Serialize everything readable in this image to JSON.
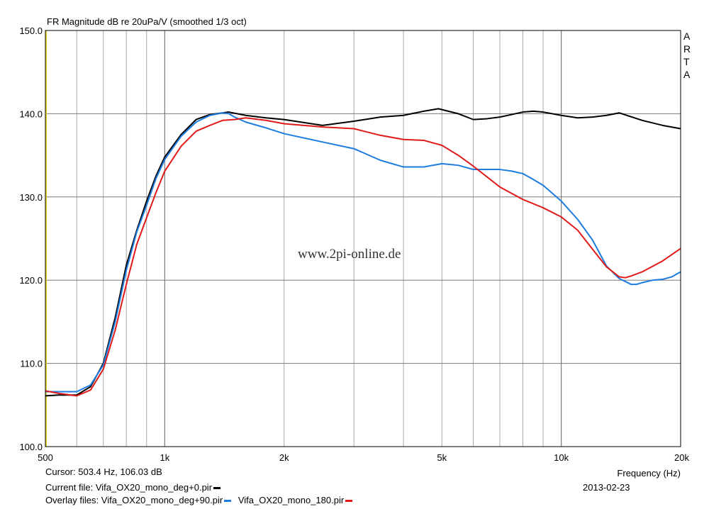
{
  "chart_data": {
    "type": "line",
    "title": "FR Magnitude dB re 20uPa/V (smoothed 1/3 oct)",
    "watermark": "www.2pi-online.de",
    "arta_label": "A\nR\nT\nA",
    "xlabel": "Frequency (Hz)",
    "x_scale": "log",
    "xlim": [
      500,
      20000
    ],
    "ylim": [
      100,
      150
    ],
    "x_ticks": [
      {
        "value": 500,
        "label": "500"
      },
      {
        "value": 1000,
        "label": "1k"
      },
      {
        "value": 2000,
        "label": "2k"
      },
      {
        "value": 5000,
        "label": "5k"
      },
      {
        "value": 10000,
        "label": "10k"
      },
      {
        "value": 20000,
        "label": "20k"
      }
    ],
    "y_ticks": [
      {
        "value": 100,
        "label": "100.0"
      },
      {
        "value": 110,
        "label": "110.0"
      },
      {
        "value": 120,
        "label": "120.0"
      },
      {
        "value": 130,
        "label": "130.0"
      },
      {
        "value": 140,
        "label": "140.0"
      },
      {
        "value": 150,
        "label": "150.0"
      }
    ],
    "grid": true,
    "series": [
      {
        "name": "Vifa_OX20_mono_deg+0.pir",
        "color": "#000000",
        "x": [
          500,
          540,
          600,
          650,
          700,
          750,
          800,
          850,
          900,
          950,
          1000,
          1100,
          1200,
          1300,
          1400,
          1450,
          1600,
          1800,
          2000,
          2500,
          3000,
          3500,
          4000,
          4500,
          4900,
          5500,
          6000,
          6500,
          7000,
          7500,
          8000,
          8500,
          9000,
          10000,
          11000,
          12000,
          13000,
          14000,
          16000,
          18000,
          20000
        ],
        "y": [
          106.1,
          106.2,
          106.2,
          107.2,
          110.0,
          115.5,
          121.8,
          126.0,
          129.5,
          132.5,
          134.8,
          137.5,
          139.3,
          139.9,
          140.1,
          140.2,
          139.8,
          139.5,
          139.3,
          138.6,
          139.1,
          139.6,
          139.8,
          140.3,
          140.6,
          140.0,
          139.3,
          139.4,
          139.6,
          139.9,
          140.2,
          140.3,
          140.2,
          139.8,
          139.5,
          139.6,
          139.8,
          140.1,
          139.2,
          138.6,
          138.2
        ]
      },
      {
        "name": "Vifa_OX20_mono_deg+90.pir",
        "color": "#1c7ce0",
        "x": [
          500,
          540,
          600,
          650,
          700,
          750,
          800,
          850,
          900,
          950,
          1000,
          1100,
          1200,
          1300,
          1400,
          1450,
          1500,
          1600,
          1800,
          2000,
          2500,
          3000,
          3500,
          4000,
          4500,
          5000,
          5500,
          6000,
          6500,
          7000,
          7500,
          8000,
          8500,
          9000,
          10000,
          11000,
          12000,
          13000,
          14000,
          15000,
          15500,
          16000,
          17000,
          18000,
          19000,
          20000
        ],
        "y": [
          106.6,
          106.6,
          106.6,
          107.4,
          109.8,
          115.0,
          121.2,
          125.8,
          129.0,
          132.2,
          134.5,
          137.3,
          139.0,
          139.8,
          140.1,
          140.0,
          139.6,
          139.0,
          138.3,
          137.6,
          136.6,
          135.8,
          134.4,
          133.6,
          133.6,
          134.0,
          133.8,
          133.3,
          133.3,
          133.3,
          133.1,
          132.8,
          132.1,
          131.4,
          129.5,
          127.3,
          124.8,
          121.7,
          120.2,
          119.5,
          119.5,
          119.7,
          120.0,
          120.1,
          120.4,
          121.0
        ]
      },
      {
        "name": "Vifa_OX20_mono_180.pir",
        "color": "#e01a1a",
        "x": [
          500,
          540,
          600,
          650,
          700,
          750,
          800,
          850,
          900,
          950,
          1000,
          1100,
          1200,
          1300,
          1400,
          1500,
          1600,
          1800,
          2000,
          2500,
          3000,
          3500,
          4000,
          4500,
          5000,
          5500,
          6000,
          7000,
          8000,
          9000,
          10000,
          11000,
          12000,
          13000,
          14000,
          14500,
          15000,
          16000,
          18000,
          20000
        ],
        "y": [
          106.7,
          106.4,
          106.1,
          106.8,
          109.3,
          114.0,
          119.5,
          124.3,
          127.5,
          130.5,
          133.1,
          136.1,
          137.9,
          138.6,
          139.2,
          139.3,
          139.5,
          139.2,
          138.8,
          138.4,
          138.2,
          137.4,
          136.9,
          136.8,
          136.2,
          135.0,
          133.7,
          131.2,
          129.7,
          128.7,
          127.6,
          126.0,
          123.7,
          121.6,
          120.4,
          120.3,
          120.5,
          121.0,
          122.3,
          123.8
        ]
      }
    ]
  },
  "footer": {
    "cursor": "Cursor: 503.4 Hz, 106.03 dB",
    "current_file_prefix": "Current file:",
    "current_file": "Vifa_OX20_mono_deg+0.pir",
    "overlay_files_prefix": "Overlay files:",
    "overlay_file_1": "Vifa_OX20_mono_deg+90.pir",
    "overlay_file_2": "Vifa_OX20_mono_180.pir",
    "date": "2013-02-23"
  },
  "colors": {
    "grid": "#a8a8a8",
    "cursor": "#e8d830",
    "frame": "#000000"
  }
}
